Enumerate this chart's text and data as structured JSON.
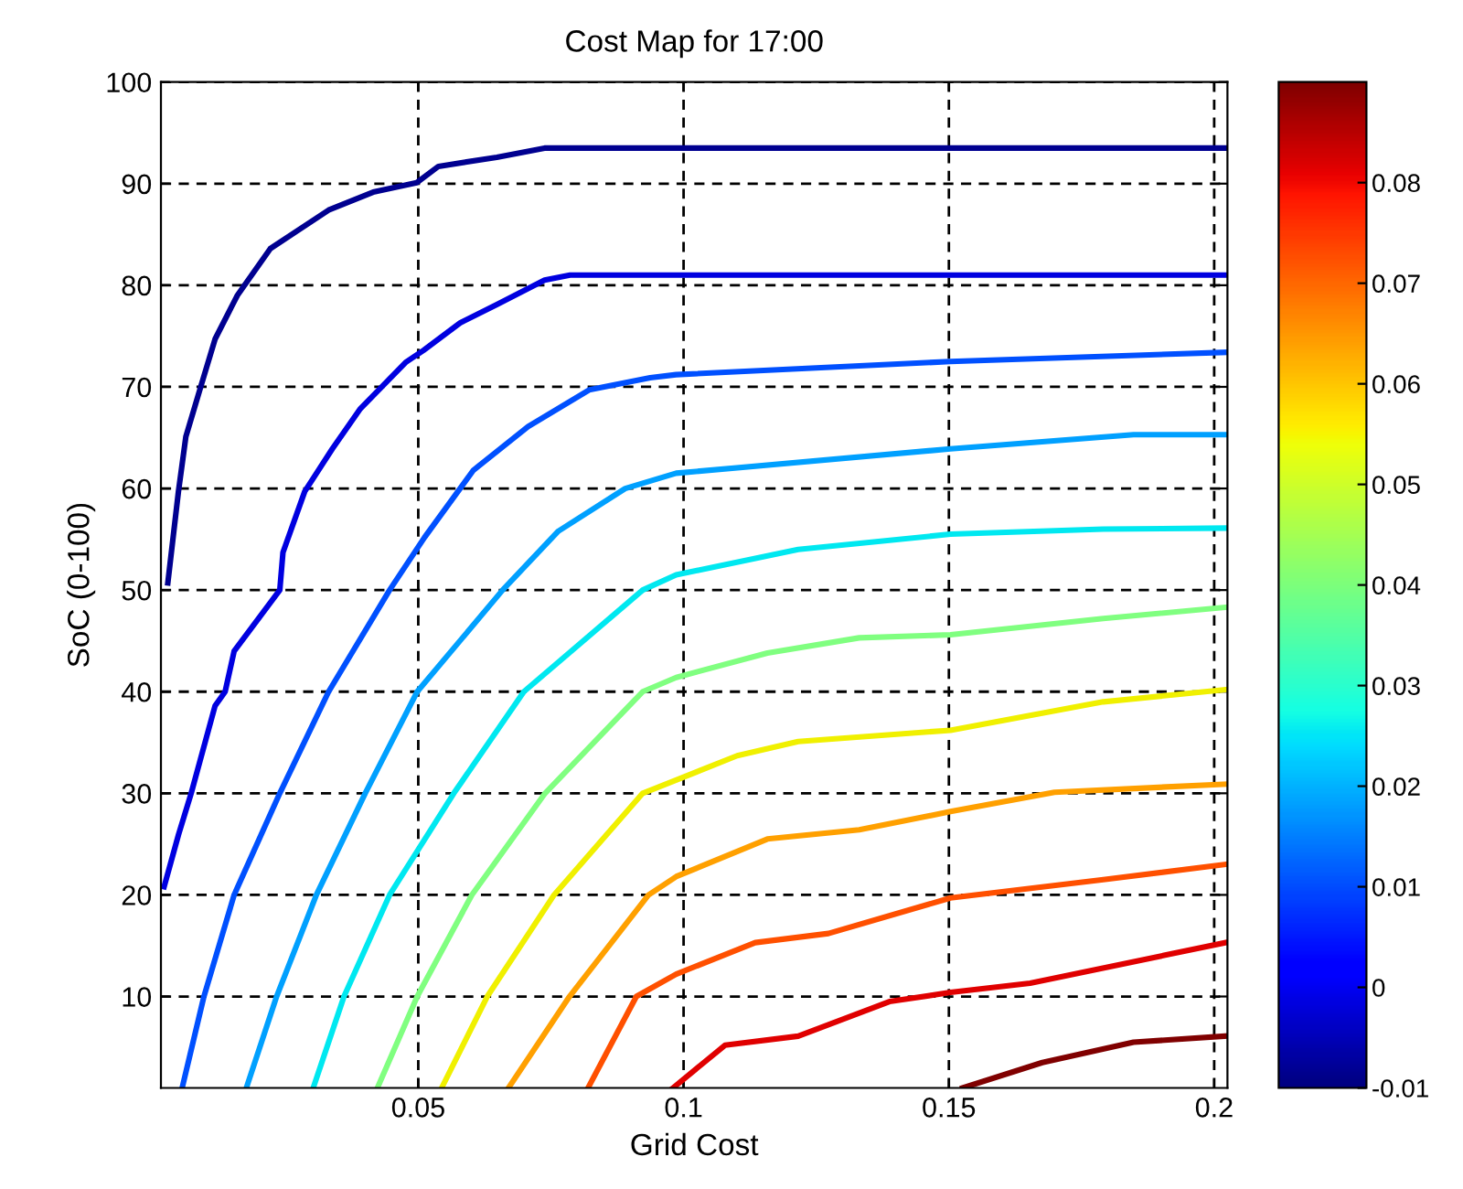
{
  "chart_data": {
    "type": "line",
    "title": "Cost Map for 17:00",
    "xlabel": "Grid Cost",
    "ylabel": "SoC (0-100)",
    "xlim": [
      0.0015,
      0.2025
    ],
    "ylim": [
      1,
      100
    ],
    "xticks": [
      0.05,
      0.1,
      0.15,
      0.2
    ],
    "yticks": [
      10,
      20,
      30,
      40,
      50,
      60,
      70,
      80,
      90,
      100
    ],
    "grid": true,
    "line_style": "solid",
    "clim": [
      -0.01,
      0.09
    ],
    "cticks": [
      -0.01,
      0,
      0.01,
      0.02,
      0.03,
      0.04,
      0.05,
      0.06,
      0.07,
      0.08
    ],
    "series": [
      {
        "color": "#000090",
        "x": [
          0.0028,
          0.0048,
          0.0062,
          0.009,
          0.0117,
          0.0159,
          0.0221,
          0.0331,
          0.0417,
          0.0497,
          0.0538,
          0.0648,
          0.0738,
          0.2021
        ],
        "values": [
          50.7,
          59.7,
          65.1,
          70,
          74.7,
          79,
          83.6,
          87.4,
          89.2,
          90.1,
          91.7,
          92.6,
          93.5,
          93.5
        ]
      },
      {
        "color": "#0000e0",
        "x": [
          0.0021,
          0.0048,
          0.0072,
          0.0117,
          0.0136,
          0.0153,
          0.0239,
          0.0245,
          0.0286,
          0.0338,
          0.039,
          0.0476,
          0.051,
          0.0579,
          0.0648,
          0.0738,
          0.0786,
          0.2021
        ],
        "values": [
          20.8,
          25.9,
          30,
          38.6,
          40,
          44,
          50,
          53.7,
          59.7,
          63.9,
          67.8,
          72.4,
          73.6,
          76.3,
          78.1,
          80.5,
          81,
          81
        ]
      },
      {
        "color": "#0050ff",
        "x": [
          0.0055,
          0.0096,
          0.0153,
          0.0239,
          0.0331,
          0.0446,
          0.0512,
          0.0604,
          0.0707,
          0.0822,
          0.0937,
          0.0986,
          0.1503,
          0.2021
        ],
        "values": [
          1,
          10,
          20,
          30,
          40,
          50,
          55.2,
          61.8,
          66.1,
          69.7,
          70.9,
          71.2,
          72.5,
          73.4
        ]
      },
      {
        "color": "#00a0ff",
        "x": [
          0.0176,
          0.0233,
          0.0308,
          0.04,
          0.0498,
          0.0659,
          0.0764,
          0.089,
          0.0986,
          0.1503,
          0.1848,
          0.2021
        ],
        "values": [
          1,
          10,
          20,
          30,
          40,
          50,
          55.8,
          60,
          61.5,
          63.9,
          65.3,
          65.3
        ]
      },
      {
        "color": "#00e8f0",
        "x": [
          0.0302,
          0.036,
          0.0446,
          0.0567,
          0.0699,
          0.0923,
          0.0986,
          0.1216,
          0.1503,
          0.1791,
          0.2021
        ],
        "values": [
          1,
          10,
          20,
          30,
          40,
          50,
          51.5,
          54,
          55.5,
          56,
          56.1
        ]
      },
      {
        "color": "#80ff80",
        "x": [
          0.0423,
          0.0498,
          0.0601,
          0.0739,
          0.0923,
          0.0986,
          0.1158,
          0.1331,
          0.1503,
          0.1791,
          0.2021
        ],
        "values": [
          1,
          10,
          20,
          30,
          40,
          41.4,
          43.8,
          45.3,
          45.6,
          47.2,
          48.3
        ]
      },
      {
        "color": "#f0f000",
        "x": [
          0.0544,
          0.063,
          0.0756,
          0.0923,
          0.0986,
          0.1101,
          0.1216,
          0.1503,
          0.1791,
          0.2021
        ],
        "values": [
          1,
          10,
          20,
          30,
          31.3,
          33.7,
          35.1,
          36.2,
          39,
          40.2
        ]
      },
      {
        "color": "#ffa000",
        "x": [
          0.067,
          0.0785,
          0.0934,
          0.0986,
          0.1158,
          0.1331,
          0.1503,
          0.1699,
          0.2021
        ],
        "values": [
          1,
          10,
          20,
          21.8,
          25.5,
          26.4,
          28.2,
          30.1,
          30.9
        ]
      },
      {
        "color": "#ff5000",
        "x": [
          0.082,
          0.0911,
          0.0986,
          0.1135,
          0.1273,
          0.1503,
          0.1791,
          0.2021
        ],
        "values": [
          1,
          10,
          12.2,
          15.3,
          16.2,
          19.7,
          21.5,
          23
        ]
      },
      {
        "color": "#e00000",
        "x": [
          0.098,
          0.1078,
          0.1216,
          0.1388,
          0.1503,
          0.1653,
          0.2021
        ],
        "values": [
          1,
          5.2,
          6.1,
          9.5,
          10.4,
          11.3,
          15.3
        ]
      },
      {
        "color": "#800000",
        "x": [
          0.1526,
          0.1676,
          0.1848,
          0.2021
        ],
        "values": [
          1,
          3.5,
          5.5,
          6.1
        ]
      }
    ]
  }
}
